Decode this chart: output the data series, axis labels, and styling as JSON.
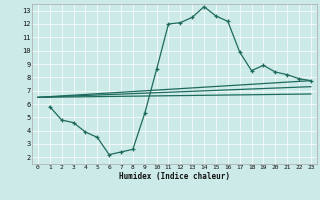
{
  "xlabel": "Humidex (Indice chaleur)",
  "background_color": "#cceae7",
  "line_color": "#1e6b5e",
  "grid_color": "#ffffff",
  "xlim": [
    -0.5,
    23.5
  ],
  "ylim": [
    1.5,
    13.5
  ],
  "xticks": [
    0,
    1,
    2,
    3,
    4,
    5,
    6,
    7,
    8,
    9,
    10,
    11,
    12,
    13,
    14,
    15,
    16,
    17,
    18,
    19,
    20,
    21,
    22,
    23
  ],
  "yticks": [
    2,
    3,
    4,
    5,
    6,
    7,
    8,
    9,
    10,
    11,
    12,
    13
  ],
  "line1_x": [
    1,
    2,
    3,
    4,
    5,
    6,
    7,
    8,
    9,
    10,
    11,
    12,
    13,
    14,
    15,
    16,
    17,
    18,
    19,
    20,
    21,
    22,
    23
  ],
  "line1_y": [
    5.8,
    4.8,
    4.6,
    3.9,
    3.5,
    2.2,
    2.4,
    2.6,
    5.3,
    8.6,
    12.0,
    12.1,
    12.5,
    13.3,
    12.6,
    12.2,
    9.9,
    8.5,
    8.9,
    8.4,
    8.2,
    7.9,
    7.75
  ],
  "line2_x": [
    0,
    23
  ],
  "line2_y": [
    6.5,
    7.75
  ],
  "line3_x": [
    0,
    23
  ],
  "line3_y": [
    6.5,
    7.3
  ],
  "line4_x": [
    0,
    23
  ],
  "line4_y": [
    6.5,
    6.75
  ]
}
